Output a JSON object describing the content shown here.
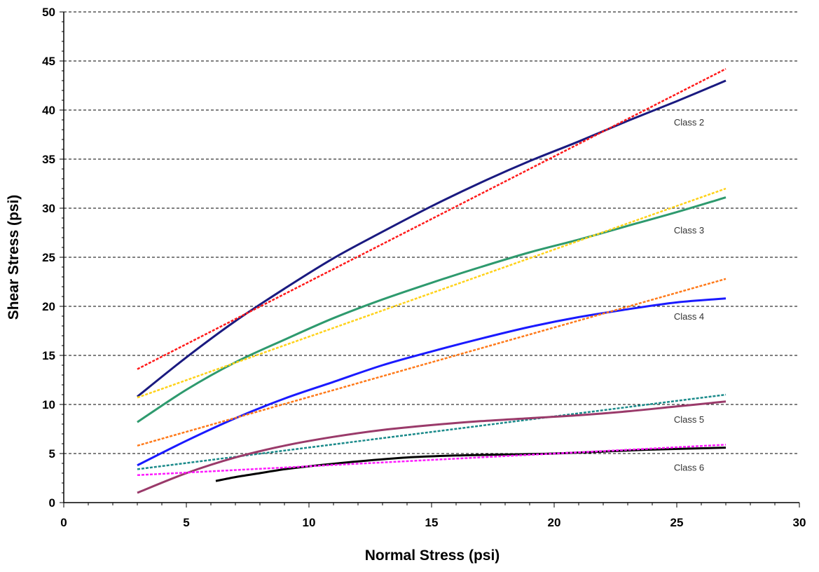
{
  "chart_data": {
    "type": "line",
    "title": "",
    "xlabel": "Normal Stress (psi)",
    "ylabel": "Shear Stress (psi)",
    "xlim": [
      0,
      30
    ],
    "ylim": [
      0,
      50
    ],
    "x_ticks": [
      0,
      5,
      10,
      15,
      20,
      25,
      30
    ],
    "y_ticks": [
      0,
      5,
      10,
      15,
      20,
      25,
      30,
      35,
      40,
      45,
      50
    ],
    "x_tick_labels": [
      "0",
      "5",
      "10",
      "15",
      "20",
      "25",
      "30"
    ],
    "y_tick_labels": [
      "0",
      "5",
      "10",
      "15",
      "20",
      "25",
      "30",
      "35",
      "40",
      "45",
      "50"
    ],
    "grid": "horizontal dashed",
    "legend": "none",
    "series": [
      {
        "color": "#1a1a80",
        "dashed": false,
        "x": [
          3,
          5,
          7,
          9,
          11,
          13,
          15,
          17,
          19,
          21,
          23,
          25,
          27
        ],
        "y": [
          10.8,
          14.8,
          18.5,
          21.8,
          24.9,
          27.6,
          30.2,
          32.6,
          34.8,
          36.8,
          38.9,
          40.9,
          43.0
        ]
      },
      {
        "color": "#ff1a1a",
        "dashed": true,
        "x": [
          3,
          27
        ],
        "y": [
          13.6,
          44.2
        ]
      },
      {
        "color": "#2e9a6e",
        "dashed": false,
        "x": [
          3,
          5,
          7,
          9,
          11,
          13,
          15,
          17,
          19,
          21,
          23,
          25,
          27
        ],
        "y": [
          8.2,
          11.5,
          14.3,
          16.6,
          18.8,
          20.7,
          22.4,
          24.0,
          25.5,
          26.8,
          28.2,
          29.6,
          31.1
        ]
      },
      {
        "color": "#ffd21a",
        "dashed": true,
        "x": [
          3,
          27
        ],
        "y": [
          10.7,
          32.0
        ]
      },
      {
        "color": "#1a1aff",
        "dashed": false,
        "x": [
          3,
          5,
          7,
          9,
          11,
          13,
          15,
          17,
          19,
          21,
          23,
          25,
          27
        ],
        "y": [
          3.8,
          6.3,
          8.6,
          10.6,
          12.3,
          14.0,
          15.4,
          16.7,
          17.9,
          18.9,
          19.7,
          20.4,
          20.8
        ]
      },
      {
        "color": "#ff7a1a",
        "dashed": true,
        "x": [
          3,
          27
        ],
        "y": [
          5.8,
          22.8
        ]
      },
      {
        "color": "#1a8a8a",
        "dashed": true,
        "x": [
          3,
          27
        ],
        "y": [
          3.4,
          11.0
        ]
      },
      {
        "color": "#9a3a6a",
        "dashed": false,
        "x": [
          3,
          5,
          7,
          9,
          11,
          13,
          15,
          17,
          19,
          21,
          23,
          25,
          27
        ],
        "y": [
          1.0,
          3.0,
          4.6,
          5.8,
          6.7,
          7.4,
          7.9,
          8.3,
          8.6,
          8.9,
          9.3,
          9.8,
          10.3
        ]
      },
      {
        "color": "#000000",
        "dashed": false,
        "x": [
          6.2,
          7,
          8,
          9,
          10,
          12,
          14,
          16,
          18,
          20,
          22,
          24,
          27
        ],
        "y": [
          2.2,
          2.6,
          3.0,
          3.4,
          3.7,
          4.2,
          4.6,
          4.8,
          4.9,
          5.0,
          5.2,
          5.4,
          5.6
        ]
      },
      {
        "color": "#ff1aff",
        "dashed": true,
        "x": [
          3,
          27
        ],
        "y": [
          2.8,
          5.9
        ]
      }
    ],
    "annotations": [
      {
        "text": "Class 2",
        "x": 25.5,
        "y": 38.8
      },
      {
        "text": "Class 3",
        "x": 25.5,
        "y": 27.8
      },
      {
        "text": "Class 4",
        "x": 25.5,
        "y": 19.0
      },
      {
        "text": "Class 5",
        "x": 25.5,
        "y": 8.5
      },
      {
        "text": "Class 6",
        "x": 25.5,
        "y": 3.6
      }
    ]
  }
}
